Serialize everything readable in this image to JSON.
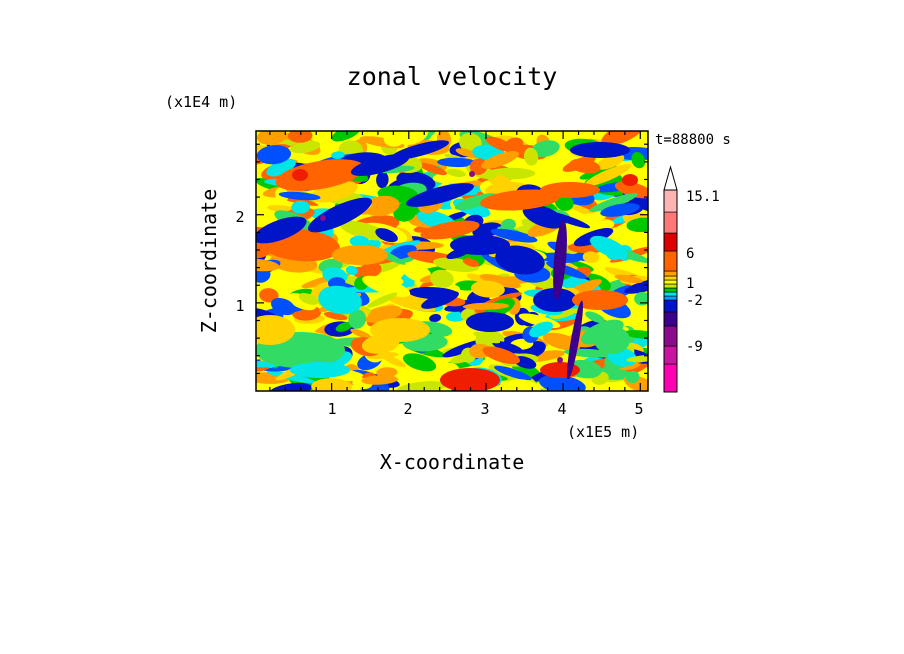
{
  "chart_data": {
    "type": "heatmap",
    "title": "zonal velocity",
    "xlabel": "X-coordinate",
    "ylabel": "Z-coordinate",
    "x_scale_note": "(x1E5 m)",
    "y_scale_note": "(x1E4 m)",
    "time_label": "t=88800 s",
    "xlim": [
      0.02,
      5.1
    ],
    "ylim": [
      0.0,
      2.95
    ],
    "x_ticks": [
      "1",
      "2",
      "3",
      "4",
      "5"
    ],
    "y_ticks": [
      "1",
      "2"
    ],
    "colorbar": {
      "labels": [
        "15.1",
        "6",
        "1",
        "-2",
        "-9"
      ],
      "colors": [
        "#ff00b4",
        "#c814a0",
        "#8c0a8c",
        "#3c008c",
        "#0014c8",
        "#0050ff",
        "#00a0ff",
        "#00e6e6",
        "#32dc64",
        "#00c800",
        "#c8e600",
        "#ffff00",
        "#ffd200",
        "#ffa000",
        "#ff6400",
        "#f01e00",
        "#dc0000",
        "#ff7878",
        "#ffb4b4"
      ],
      "extend": "max"
    },
    "field_description_values": "2D contour field of zonal velocity in m/s ranging from about -15 to 15.1"
  }
}
